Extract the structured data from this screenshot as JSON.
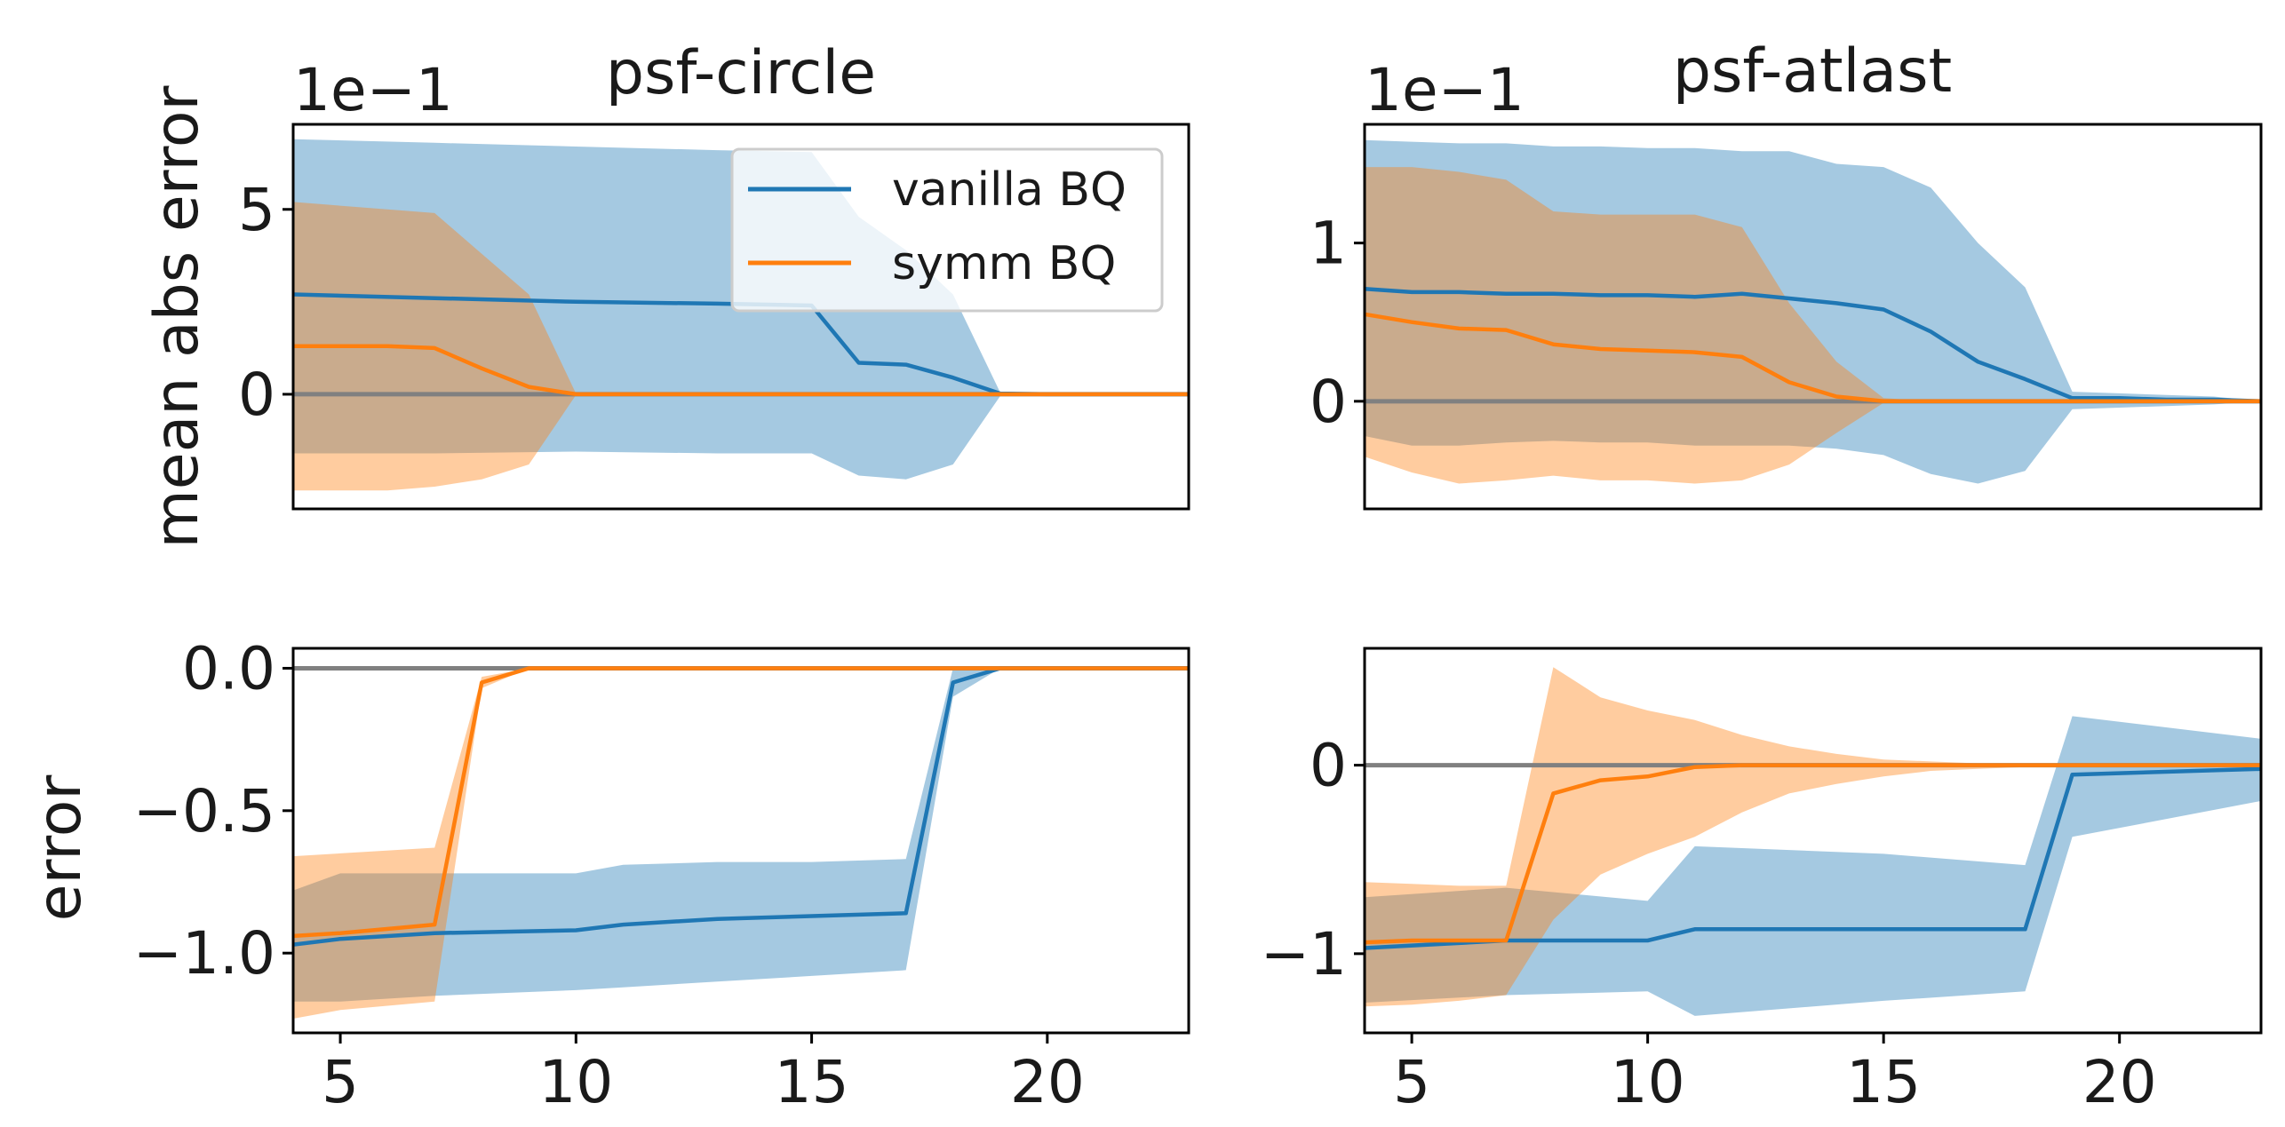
{
  "colors": {
    "vanilla": "#1f77b4",
    "symm": "#ff7f0e",
    "reference": "#808080",
    "axes": "#000000",
    "legend_frame": "#cccccc"
  },
  "chart_data": [
    {
      "id": "circle-top",
      "type": "line",
      "title": "psf-circle",
      "ylabel": "mean abs error",
      "offset_text": "1e−1",
      "xlim": [
        4,
        23
      ],
      "ylim": [
        -3.1,
        7.3
      ],
      "xticks": [],
      "yticks": [
        {
          "v": 5,
          "label": "5"
        },
        {
          "v": 0,
          "label": "0"
        }
      ],
      "reference_y": 0,
      "legend": {
        "position": "upper center",
        "entries": [
          {
            "series": "vanilla",
            "label": "vanilla BQ"
          },
          {
            "series": "symm",
            "label": "symm BQ"
          }
        ]
      },
      "series": [
        {
          "name": "vanilla",
          "label": "vanilla BQ",
          "x": [
            4,
            7,
            10,
            13,
            15,
            16,
            17,
            18,
            19,
            20,
            23
          ],
          "mean": [
            2.7,
            2.6,
            2.5,
            2.45,
            2.4,
            0.85,
            0.8,
            0.45,
            0.02,
            0.0,
            0.0
          ],
          "upper": [
            6.9,
            6.8,
            6.7,
            6.6,
            6.55,
            4.8,
            3.9,
            2.7,
            0.05,
            0.02,
            0.0
          ],
          "lower": [
            -1.6,
            -1.6,
            -1.55,
            -1.6,
            -1.6,
            -2.2,
            -2.3,
            -1.9,
            -0.05,
            -0.02,
            0.0
          ]
        },
        {
          "name": "symm",
          "label": "symm BQ",
          "x": [
            4,
            6,
            7,
            8,
            9,
            10,
            11,
            23
          ],
          "mean": [
            1.3,
            1.3,
            1.25,
            0.7,
            0.2,
            0.0,
            0.0,
            0.0
          ],
          "upper": [
            5.2,
            5.0,
            4.9,
            3.8,
            2.7,
            0.02,
            0.0,
            0.0
          ],
          "lower": [
            -2.6,
            -2.6,
            -2.5,
            -2.3,
            -1.9,
            -0.02,
            0.0,
            0.0
          ]
        }
      ]
    },
    {
      "id": "atlast-top",
      "type": "line",
      "title": "psf-atlast",
      "ylabel": "",
      "offset_text": "1e−1",
      "xlim": [
        4,
        23
      ],
      "ylim": [
        -0.68,
        1.75
      ],
      "xticks": [],
      "yticks": [
        {
          "v": 1,
          "label": "1"
        },
        {
          "v": 0,
          "label": "0"
        }
      ],
      "reference_y": 0,
      "series": [
        {
          "name": "vanilla",
          "label": "vanilla BQ",
          "x": [
            4,
            5,
            6,
            7,
            8,
            9,
            10,
            11,
            12,
            13,
            14,
            15,
            16,
            17,
            18,
            19,
            20,
            21,
            22,
            23
          ],
          "mean": [
            0.71,
            0.69,
            0.69,
            0.68,
            0.68,
            0.67,
            0.67,
            0.66,
            0.68,
            0.65,
            0.62,
            0.58,
            0.44,
            0.25,
            0.14,
            0.02,
            0.02,
            0.01,
            0.01,
            0.0
          ],
          "upper": [
            1.65,
            1.64,
            1.63,
            1.63,
            1.61,
            1.61,
            1.6,
            1.6,
            1.58,
            1.58,
            1.5,
            1.48,
            1.35,
            1.0,
            0.72,
            0.06,
            0.05,
            0.04,
            0.03,
            0.0
          ],
          "lower": [
            -0.22,
            -0.28,
            -0.28,
            -0.26,
            -0.25,
            -0.26,
            -0.26,
            -0.28,
            -0.28,
            -0.28,
            -0.3,
            -0.34,
            -0.46,
            -0.52,
            -0.44,
            -0.05,
            -0.04,
            -0.03,
            -0.02,
            0.0
          ]
        },
        {
          "name": "symm",
          "label": "symm BQ",
          "x": [
            4,
            5,
            6,
            7,
            8,
            9,
            10,
            11,
            12,
            13,
            14,
            15,
            16,
            23
          ],
          "mean": [
            0.55,
            0.5,
            0.46,
            0.45,
            0.36,
            0.33,
            0.32,
            0.31,
            0.28,
            0.12,
            0.03,
            0.0,
            0.0,
            0.0
          ],
          "upper": [
            1.48,
            1.48,
            1.45,
            1.4,
            1.2,
            1.18,
            1.18,
            1.18,
            1.1,
            0.62,
            0.25,
            0.02,
            0.0,
            0.0
          ],
          "lower": [
            -0.35,
            -0.45,
            -0.52,
            -0.5,
            -0.47,
            -0.5,
            -0.5,
            -0.52,
            -0.5,
            -0.4,
            -0.2,
            -0.01,
            0.0,
            0.0
          ]
        }
      ]
    },
    {
      "id": "circle-bottom",
      "type": "line",
      "title": "",
      "ylabel": "error",
      "offset_text": "",
      "xlim": [
        4,
        23
      ],
      "ylim": [
        -1.28,
        0.07
      ],
      "xticks": [
        {
          "v": 5,
          "label": "5"
        },
        {
          "v": 10,
          "label": "10"
        },
        {
          "v": 15,
          "label": "15"
        },
        {
          "v": 20,
          "label": "20"
        }
      ],
      "yticks": [
        {
          "v": 0,
          "label": "0.0"
        },
        {
          "v": -0.5,
          "label": "−0.5"
        },
        {
          "v": -1.0,
          "label": "−1.0"
        }
      ],
      "reference_y": 0,
      "series": [
        {
          "name": "vanilla",
          "label": "vanilla BQ",
          "x": [
            4,
            5,
            7,
            10,
            11,
            13,
            15,
            17,
            18,
            19,
            23
          ],
          "mean": [
            -0.97,
            -0.95,
            -0.93,
            -0.92,
            -0.9,
            -0.88,
            -0.87,
            -0.86,
            -0.05,
            0.0,
            0.0
          ],
          "upper": [
            -0.78,
            -0.72,
            -0.72,
            -0.72,
            -0.69,
            -0.68,
            -0.68,
            -0.67,
            0.0,
            0.0,
            0.0
          ],
          "lower": [
            -1.17,
            -1.17,
            -1.15,
            -1.13,
            -1.12,
            -1.1,
            -1.08,
            -1.06,
            -0.1,
            0.0,
            0.0
          ]
        },
        {
          "name": "symm",
          "label": "symm BQ",
          "x": [
            4,
            5,
            7,
            8,
            9,
            10,
            23
          ],
          "mean": [
            -0.94,
            -0.93,
            -0.9,
            -0.05,
            0.0,
            0.0,
            0.0
          ],
          "upper": [
            -0.66,
            -0.65,
            -0.63,
            -0.03,
            0.0,
            0.0,
            0.0
          ],
          "lower": [
            -1.23,
            -1.2,
            -1.17,
            -0.07,
            0.0,
            0.0,
            0.0
          ]
        }
      ]
    },
    {
      "id": "atlast-bottom",
      "type": "line",
      "title": "",
      "ylabel": "",
      "offset_text": "",
      "xlim": [
        4,
        23
      ],
      "ylim": [
        -1.42,
        0.62
      ],
      "xticks": [
        {
          "v": 5,
          "label": "5"
        },
        {
          "v": 10,
          "label": "10"
        },
        {
          "v": 15,
          "label": "15"
        },
        {
          "v": 20,
          "label": "20"
        }
      ],
      "yticks": [
        {
          "v": 0,
          "label": "0"
        },
        {
          "v": -1,
          "label": "−1"
        }
      ],
      "reference_y": 0,
      "series": [
        {
          "name": "vanilla",
          "label": "vanilla BQ",
          "x": [
            4,
            7,
            10,
            11,
            15,
            18,
            19,
            23
          ],
          "mean": [
            -0.97,
            -0.93,
            -0.93,
            -0.87,
            -0.87,
            -0.87,
            -0.05,
            -0.02
          ],
          "upper": [
            -0.7,
            -0.65,
            -0.72,
            -0.43,
            -0.47,
            -0.53,
            0.26,
            0.14
          ],
          "lower": [
            -1.26,
            -1.22,
            -1.2,
            -1.33,
            -1.25,
            -1.2,
            -0.38,
            -0.19
          ]
        },
        {
          "name": "symm",
          "label": "symm BQ",
          "x": [
            4,
            5,
            6,
            7,
            8,
            9,
            10,
            11,
            12,
            13,
            14,
            15,
            16,
            17,
            18,
            19,
            20,
            23
          ],
          "mean": [
            -0.94,
            -0.93,
            -0.93,
            -0.93,
            -0.15,
            -0.08,
            -0.06,
            -0.01,
            0.0,
            0.0,
            0.0,
            0.0,
            0.0,
            0.0,
            0.0,
            0.0,
            0.0,
            0.0
          ],
          "upper": [
            -0.62,
            -0.63,
            -0.64,
            -0.64,
            0.52,
            0.36,
            0.29,
            0.24,
            0.16,
            0.1,
            0.06,
            0.03,
            0.02,
            0.01,
            0.01,
            0.0,
            0.0,
            0.0
          ],
          "lower": [
            -1.28,
            -1.27,
            -1.25,
            -1.22,
            -0.82,
            -0.58,
            -0.47,
            -0.38,
            -0.25,
            -0.15,
            -0.1,
            -0.06,
            -0.03,
            -0.02,
            -0.01,
            0.0,
            0.0,
            0.0
          ]
        }
      ]
    }
  ]
}
